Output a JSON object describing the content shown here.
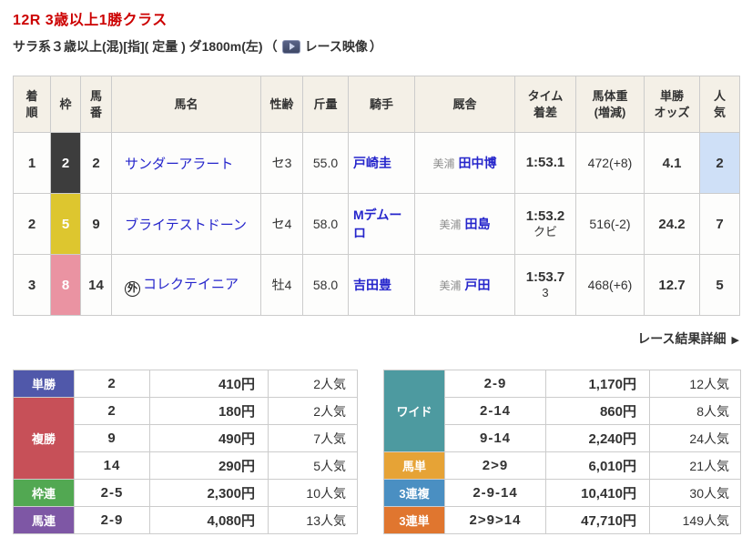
{
  "race": {
    "title": "12R 3歳以上1勝クラス",
    "conditions": "サラ系３歳以上(混)[指]( 定量 ) ダ1800m(左)",
    "paren_open": "（",
    "video_label": "レース映像",
    "paren_close": "）"
  },
  "colors": {
    "title_red": "#cc0000",
    "link_blue": "#2525cb",
    "header_bg": "#f4f0e7",
    "popularity_highlight": "#cfe0f7"
  },
  "results": {
    "headers": [
      "着\n順",
      "枠",
      "馬\n番",
      "馬名",
      "性齢",
      "斤量",
      "騎手",
      "厩舎",
      "タイム\n着差",
      "馬体重\n(増減)",
      "単勝\nオッズ",
      "人\n気"
    ],
    "rows": [
      {
        "finish": "1",
        "bracket": "2",
        "bracket_color": "#3d3d3d",
        "number": "2",
        "mark": "",
        "horse": "サンダーアラート",
        "sex_age": "セ3",
        "weight": "55.0",
        "jockey": "戸崎圭",
        "region": "美浦",
        "trainer": "田中博",
        "time": "1:53.1",
        "margin": "",
        "body_weight": "472(+8)",
        "odds": "4.1",
        "popularity": "2",
        "highlight": true
      },
      {
        "finish": "2",
        "bracket": "5",
        "bracket_color": "#ddc62f",
        "number": "9",
        "mark": "",
        "horse": "ブライテストドーン",
        "sex_age": "セ4",
        "weight": "58.0",
        "jockey": "Mデムーロ",
        "region": "美浦",
        "trainer": "田島",
        "time": "1:53.2",
        "margin": "クビ",
        "body_weight": "516(-2)",
        "odds": "24.2",
        "popularity": "7",
        "highlight": false
      },
      {
        "finish": "3",
        "bracket": "8",
        "bracket_color": "#ea93a2",
        "number": "14",
        "mark": "外",
        "horse": "コレクテイニア",
        "sex_age": "牡4",
        "weight": "58.0",
        "jockey": "吉田豊",
        "region": "美浦",
        "trainer": "戸田",
        "time": "1:53.7",
        "margin": "3",
        "body_weight": "468(+6)",
        "odds": "12.7",
        "popularity": "5",
        "highlight": false
      }
    ]
  },
  "detail_link": {
    "label": "レース結果詳細",
    "arrow": "▶"
  },
  "payouts": {
    "left": [
      {
        "type": "単勝",
        "color": "#5058aa",
        "rows": [
          {
            "combo": "2",
            "amount": "410円",
            "pop": "2人気"
          }
        ]
      },
      {
        "type": "複勝",
        "color": "#c75058",
        "rows": [
          {
            "combo": "2",
            "amount": "180円",
            "pop": "2人気"
          },
          {
            "combo": "9",
            "amount": "490円",
            "pop": "7人気"
          },
          {
            "combo": "14",
            "amount": "290円",
            "pop": "5人気"
          }
        ]
      },
      {
        "type": "枠連",
        "color": "#52a852",
        "rows": [
          {
            "combo": "2-5",
            "amount": "2,300円",
            "pop": "10人気"
          }
        ]
      },
      {
        "type": "馬連",
        "color": "#7e57a5",
        "rows": [
          {
            "combo": "2-9",
            "amount": "4,080円",
            "pop": "13人気"
          }
        ]
      }
    ],
    "right": [
      {
        "type": "ワイド",
        "color": "#4d9aa0",
        "rows": [
          {
            "combo": "2-9",
            "amount": "1,170円",
            "pop": "12人気"
          },
          {
            "combo": "2-14",
            "amount": "860円",
            "pop": "8人気"
          },
          {
            "combo": "9-14",
            "amount": "2,240円",
            "pop": "24人気"
          }
        ]
      },
      {
        "type": "馬単",
        "color": "#e6a336",
        "rows": [
          {
            "combo": "2>9",
            "amount": "6,010円",
            "pop": "21人気"
          }
        ]
      },
      {
        "type": "3連複",
        "color": "#4a8fc2",
        "rows": [
          {
            "combo": "2-9-14",
            "amount": "10,410円",
            "pop": "30人気"
          }
        ]
      },
      {
        "type": "3連単",
        "color": "#e0762f",
        "rows": [
          {
            "combo": "2>9>14",
            "amount": "47,710円",
            "pop": "149人気"
          }
        ]
      }
    ]
  }
}
